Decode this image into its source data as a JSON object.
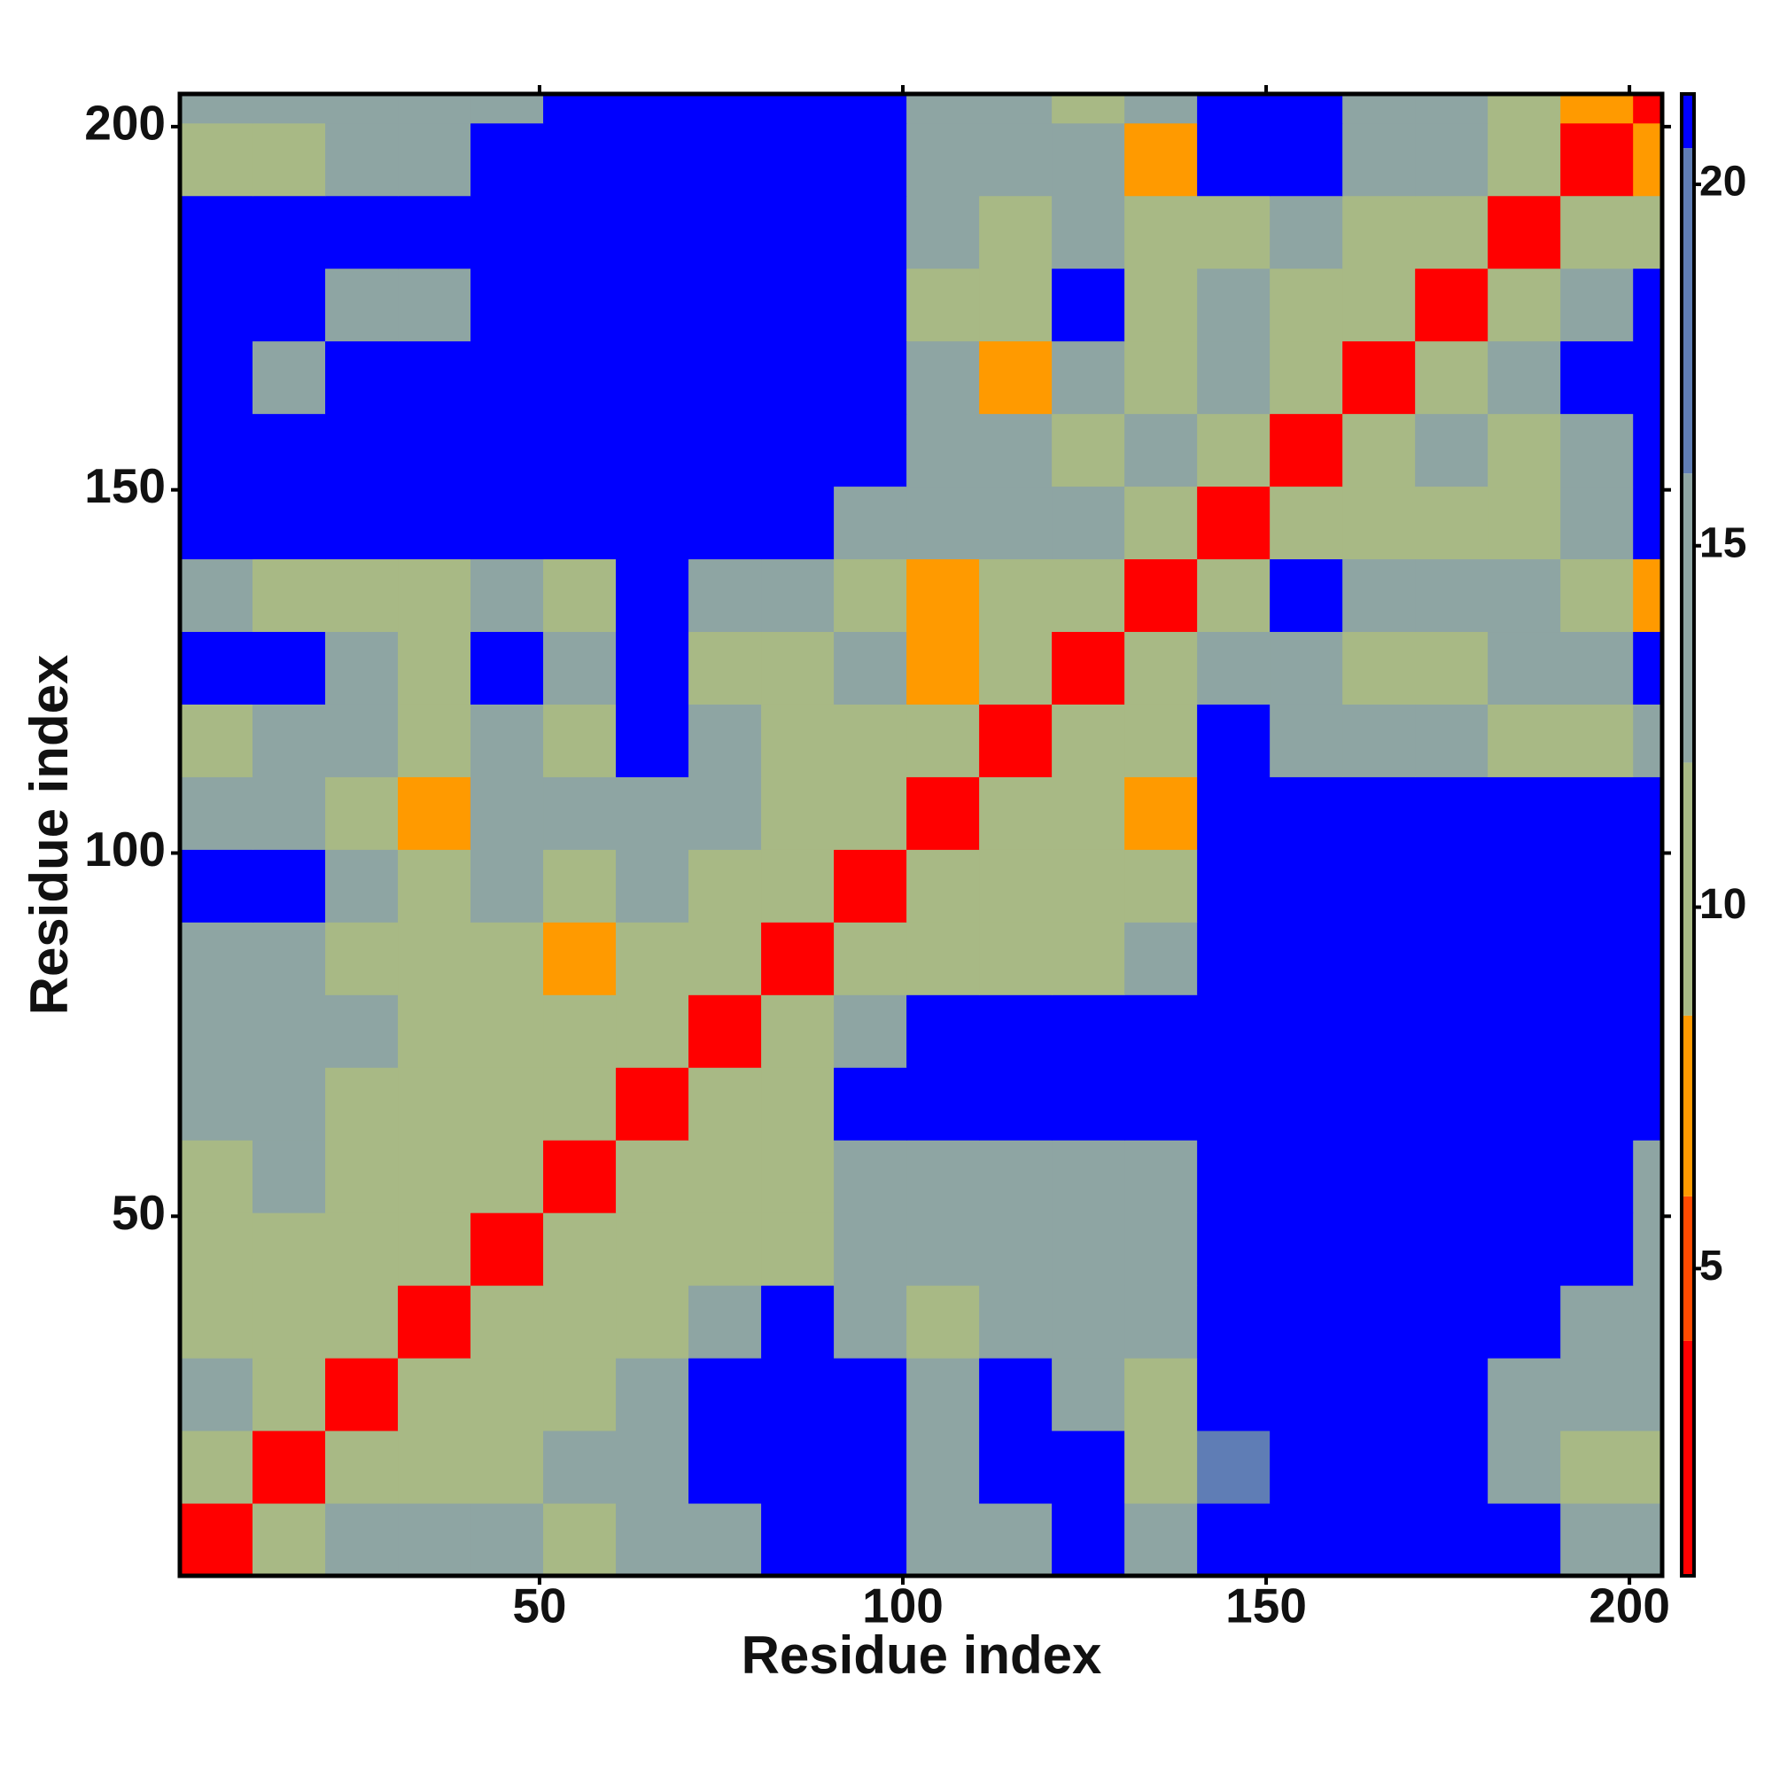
{
  "chart_data": {
    "type": "heatmap",
    "x_label": "Residue index",
    "y_label": "Residue index",
    "xlim": [
      0.5,
      204.5
    ],
    "ylim": [
      0.5,
      204.5
    ],
    "xticks": [
      50,
      100,
      150,
      200
    ],
    "yticks": [
      50,
      100,
      150,
      200
    ],
    "x_bins": [
      0.5,
      10.5,
      20.5,
      30.5,
      40.5,
      50.5,
      60.5,
      70.5,
      80.5,
      90.5,
      100.5,
      110.5,
      120.5,
      130.5,
      140.5,
      150.5,
      160.5,
      170.5,
      180.5,
      190.5,
      200.5,
      204.5
    ],
    "y_bins": [
      0.5,
      10.5,
      20.5,
      30.5,
      40.5,
      50.5,
      60.5,
      70.5,
      80.5,
      90.5,
      100.5,
      110.5,
      120.5,
      130.5,
      140.5,
      150.5,
      160.5,
      170.5,
      180.5,
      190.5,
      200.5,
      204.5
    ],
    "values": [
      [
        3,
        10,
        14,
        13,
        13,
        12,
        14,
        14,
        21,
        21,
        15,
        13,
        21,
        14,
        21,
        21,
        21,
        21,
        21,
        13,
        13
      ],
      [
        9,
        3,
        9,
        12,
        12,
        13,
        14,
        21,
        21,
        21,
        14,
        21,
        21,
        12,
        17,
        21,
        21,
        21,
        14,
        11,
        12
      ],
      [
        13,
        9,
        3,
        10,
        12,
        10,
        13,
        21,
        21,
        21,
        13,
        21,
        16,
        11,
        21,
        21,
        21,
        21,
        15,
        13,
        13
      ],
      [
        12,
        11,
        9,
        3,
        9,
        9,
        10,
        13,
        21,
        14,
        9,
        13,
        14,
        13,
        21,
        21,
        21,
        21,
        21,
        16,
        13
      ],
      [
        11,
        11,
        11,
        9,
        3,
        10,
        9,
        11,
        12,
        13,
        13,
        14,
        14,
        14,
        21,
        21,
        21,
        21,
        21,
        21,
        14
      ],
      [
        12,
        13,
        9,
        9,
        10,
        3,
        9,
        9,
        9,
        14,
        14,
        14,
        13,
        14,
        21,
        21,
        21,
        21,
        21,
        21,
        13
      ],
      [
        13,
        14,
        12,
        9,
        10,
        9,
        3,
        10,
        12,
        21,
        21,
        21,
        21,
        21,
        21,
        21,
        21,
        21,
        21,
        21,
        21
      ],
      [
        13,
        14,
        13,
        9,
        9,
        10,
        9,
        3,
        11,
        14,
        21,
        21,
        21,
        21,
        21,
        21,
        21,
        21,
        21,
        21,
        21
      ],
      [
        14,
        13,
        11,
        9,
        11,
        8,
        12,
        9,
        3,
        9,
        12,
        11,
        12,
        14,
        21,
        21,
        21,
        21,
        21,
        21,
        21
      ],
      [
        21,
        21,
        13,
        12,
        13,
        12,
        13,
        12,
        9,
        3,
        10,
        12,
        9,
        12,
        21,
        21,
        21,
        21,
        21,
        21,
        21
      ],
      [
        13,
        13,
        12,
        8,
        13,
        14,
        13,
        13,
        12,
        9,
        3,
        10,
        11,
        8,
        21,
        21,
        21,
        21,
        21,
        21,
        21
      ],
      [
        12,
        13,
        13,
        12,
        13,
        12,
        21,
        14,
        12,
        11,
        9,
        3,
        9,
        12,
        21,
        14,
        13,
        13,
        12,
        12,
        13
      ],
      [
        21,
        21,
        13,
        12,
        21,
        13,
        21,
        12,
        11,
        13,
        8,
        9,
        3,
        10,
        13,
        13,
        12,
        12,
        13,
        13,
        21
      ],
      [
        13,
        12,
        11,
        12,
        13,
        12,
        21,
        13,
        13,
        12,
        8,
        12,
        10,
        3,
        9,
        21,
        13,
        13,
        13,
        12,
        8
      ],
      [
        21,
        21,
        21,
        21,
        21,
        21,
        21,
        21,
        21,
        14,
        13,
        13,
        13,
        10,
        3,
        9,
        12,
        9,
        12,
        14,
        21
      ],
      [
        21,
        21,
        21,
        21,
        21,
        21,
        21,
        21,
        21,
        21,
        14,
        13,
        12,
        13,
        9,
        3,
        9,
        13,
        12,
        14,
        21
      ],
      [
        21,
        14,
        21,
        21,
        21,
        21,
        21,
        21,
        21,
        21,
        13,
        8,
        13,
        9,
        13,
        9,
        3,
        9,
        13,
        21,
        21
      ],
      [
        21,
        21,
        14,
        14,
        21,
        21,
        21,
        21,
        21,
        21,
        12,
        12,
        21,
        12,
        14,
        12,
        9,
        3,
        9,
        13,
        21
      ],
      [
        21,
        21,
        21,
        21,
        21,
        21,
        21,
        21,
        21,
        21,
        14,
        12,
        13,
        9,
        11,
        14,
        12,
        9,
        3,
        9,
        12
      ],
      [
        12,
        9,
        13,
        14,
        21,
        21,
        21,
        21,
        21,
        21,
        13,
        13,
        13,
        8,
        21,
        21,
        13,
        13,
        9,
        3,
        8
      ],
      [
        13,
        13,
        13,
        13,
        14,
        21,
        21,
        21,
        21,
        21,
        14,
        13,
        9,
        14,
        21,
        21,
        13,
        14,
        9,
        8,
        3
      ]
    ],
    "colorbar": {
      "lim": [
        0.75,
        21.25
      ],
      "ticks": [
        5,
        10,
        15,
        20
      ],
      "bands": [
        {
          "max": 4,
          "color": "#ff0000"
        },
        {
          "max": 6,
          "color": "#ff4a00"
        },
        {
          "max": 8.5,
          "color": "#ff9a00"
        },
        {
          "max": 12,
          "color": "#a8b985"
        },
        {
          "max": 16,
          "color": "#8ea5a3"
        },
        {
          "max": 20.5,
          "color": "#5f7db5"
        },
        {
          "max": 21.25,
          "color": "#0000ff"
        }
      ]
    }
  }
}
